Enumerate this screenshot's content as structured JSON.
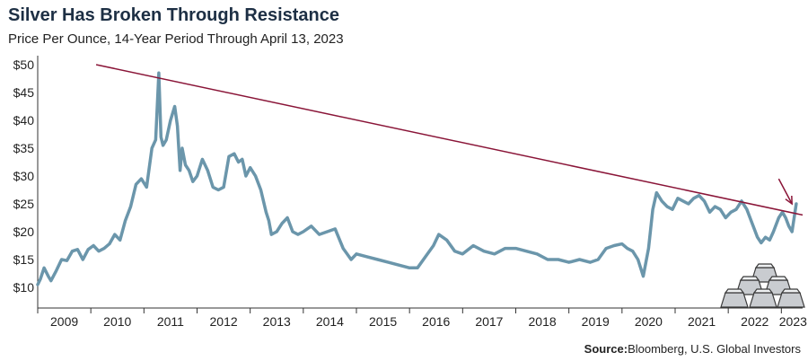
{
  "title": "Silver Has Broken Through Resistance",
  "subtitle": "Price Per Ounce, 14-Year Period Through April 13, 2023",
  "source": {
    "label": "Source:",
    "text": "Bloomberg, U.S. Global Investors"
  },
  "colors": {
    "series": "#6b96ab",
    "trendline": "#8a1538",
    "axis": "#333333",
    "text": "#222222"
  },
  "icons": [
    "silver-bars-icon"
  ],
  "chart_data": {
    "type": "line",
    "title": "Silver Has Broken Through Resistance",
    "subtitle": "Price Per Ounce, 14-Year Period Through April 13, 2023",
    "xlabel": "",
    "ylabel": "",
    "xlim": [
      2009.0,
      2023.4
    ],
    "ylim": [
      10,
      50
    ],
    "grid": false,
    "legend": "none",
    "y_ticks": [
      10,
      15,
      20,
      25,
      30,
      35,
      40,
      45,
      50
    ],
    "y_tick_labels": [
      "$10",
      "$15",
      "$20",
      "$25",
      "$30",
      "$35",
      "$40",
      "$45",
      "$50"
    ],
    "x_tick_labels": [
      "2009",
      "2010",
      "2011",
      "2012",
      "2013",
      "2014",
      "2015",
      "2016",
      "2017",
      "2018",
      "2019",
      "2020",
      "2021",
      "2022",
      "2023"
    ],
    "series": [
      {
        "x": [
          2009.0,
          2009.05,
          2009.12,
          2009.2,
          2009.25,
          2009.35,
          2009.45,
          2009.55,
          2009.65,
          2009.75,
          2009.85,
          2009.95,
          2010.05,
          2010.15,
          2010.25,
          2010.35,
          2010.45,
          2010.55,
          2010.65,
          2010.75,
          2010.85,
          2010.95,
          2011.05,
          2011.15,
          2011.22,
          2011.28,
          2011.32,
          2011.36,
          2011.42,
          2011.5,
          2011.58,
          2011.63,
          2011.68,
          2011.72,
          2011.78,
          2011.85,
          2011.92,
          2012.0,
          2012.1,
          2012.2,
          2012.3,
          2012.4,
          2012.5,
          2012.6,
          2012.7,
          2012.78,
          2012.85,
          2012.92,
          2013.0,
          2013.1,
          2013.2,
          2013.3,
          2013.35,
          2013.4,
          2013.5,
          2013.6,
          2013.7,
          2013.8,
          2013.9,
          2014.0,
          2014.15,
          2014.3,
          2014.45,
          2014.6,
          2014.75,
          2014.9,
          2015.0,
          2015.2,
          2015.4,
          2015.6,
          2015.8,
          2016.0,
          2016.15,
          2016.3,
          2016.45,
          2016.55,
          2016.7,
          2016.85,
          2017.0,
          2017.2,
          2017.4,
          2017.6,
          2017.8,
          2018.0,
          2018.2,
          2018.4,
          2018.6,
          2018.8,
          2019.0,
          2019.2,
          2019.4,
          2019.55,
          2019.7,
          2019.85,
          2020.0,
          2020.1,
          2020.2,
          2020.3,
          2020.4,
          2020.5,
          2020.58,
          2020.65,
          2020.75,
          2020.85,
          2020.95,
          2021.05,
          2021.15,
          2021.25,
          2021.35,
          2021.45,
          2021.55,
          2021.65,
          2021.75,
          2021.85,
          2021.95,
          2022.05,
          2022.15,
          2022.25,
          2022.35,
          2022.45,
          2022.55,
          2022.62,
          2022.7,
          2022.78,
          2022.85,
          2022.95,
          2023.02,
          2023.08,
          2023.14,
          2023.2,
          2023.28
        ],
        "values": [
          10.5,
          11.5,
          13.5,
          12.0,
          11.2,
          13.0,
          15.0,
          14.8,
          16.5,
          16.8,
          15.0,
          16.8,
          17.5,
          16.5,
          17.0,
          17.8,
          19.5,
          18.5,
          22.0,
          24.5,
          28.5,
          29.5,
          28.0,
          35.0,
          36.5,
          48.5,
          37.0,
          35.5,
          36.5,
          40.0,
          42.5,
          39.0,
          31.0,
          35.0,
          32.0,
          31.0,
          29.0,
          30.0,
          33.0,
          31.0,
          28.0,
          27.5,
          28.0,
          33.5,
          34.0,
          32.5,
          33.0,
          30.0,
          31.5,
          30.0,
          27.5,
          23.5,
          22.0,
          19.5,
          20.0,
          21.5,
          22.5,
          20.0,
          19.5,
          20.0,
          21.0,
          19.5,
          20.0,
          20.5,
          17.0,
          15.0,
          16.0,
          15.5,
          15.0,
          14.5,
          14.0,
          13.5,
          13.5,
          15.5,
          17.5,
          19.5,
          18.5,
          16.5,
          16.0,
          17.5,
          16.5,
          16.0,
          17.0,
          17.0,
          16.5,
          16.0,
          15.0,
          15.0,
          14.5,
          15.0,
          14.5,
          15.0,
          17.0,
          17.5,
          17.8,
          17.0,
          16.5,
          15.0,
          12.0,
          17.0,
          24.0,
          27.0,
          25.5,
          24.5,
          24.0,
          26.0,
          25.5,
          25.0,
          26.0,
          26.5,
          25.5,
          23.5,
          24.5,
          24.0,
          22.5,
          23.5,
          24.0,
          25.5,
          24.0,
          21.5,
          19.0,
          18.0,
          19.0,
          18.5,
          20.0,
          22.5,
          23.5,
          22.5,
          21.0,
          20.0,
          25.0
        ]
      }
    ],
    "trendline": {
      "x": [
        2010.1,
        2023.4
      ],
      "values": [
        50.0,
        23.0
      ]
    },
    "annotation_arrow": {
      "from": [
        2022.95,
        29.5
      ],
      "to": [
        2023.2,
        25.0
      ]
    }
  }
}
